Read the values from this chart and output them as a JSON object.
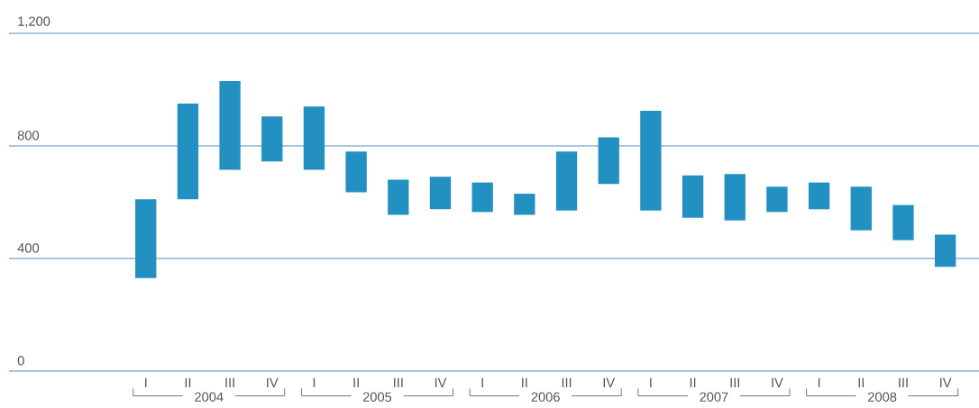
{
  "chart_data": {
    "type": "bar",
    "categories": [
      "I",
      "II",
      "III",
      "IV",
      "I",
      "II",
      "III",
      "IV",
      "I",
      "II",
      "III",
      "IV",
      "I",
      "II",
      "III",
      "IV",
      "I",
      "II",
      "III",
      "IV"
    ],
    "base": [
      330,
      610,
      715,
      745,
      715,
      635,
      555,
      575,
      565,
      555,
      570,
      665,
      570,
      545,
      535,
      565,
      575,
      500,
      465,
      370
    ],
    "values": [
      280,
      340,
      315,
      160,
      225,
      145,
      125,
      115,
      105,
      75,
      210,
      165,
      355,
      150,
      165,
      90,
      95,
      155,
      125,
      115
    ],
    "color": "#2290c1",
    "ylim": [
      0,
      1200
    ],
    "yticks": [
      0,
      400,
      800,
      {
        "value": 1200,
        "label": "1,200"
      }
    ],
    "grid": "y",
    "annotations": [
      "2004",
      "2005",
      "2006",
      "2007",
      "2008"
    ]
  }
}
